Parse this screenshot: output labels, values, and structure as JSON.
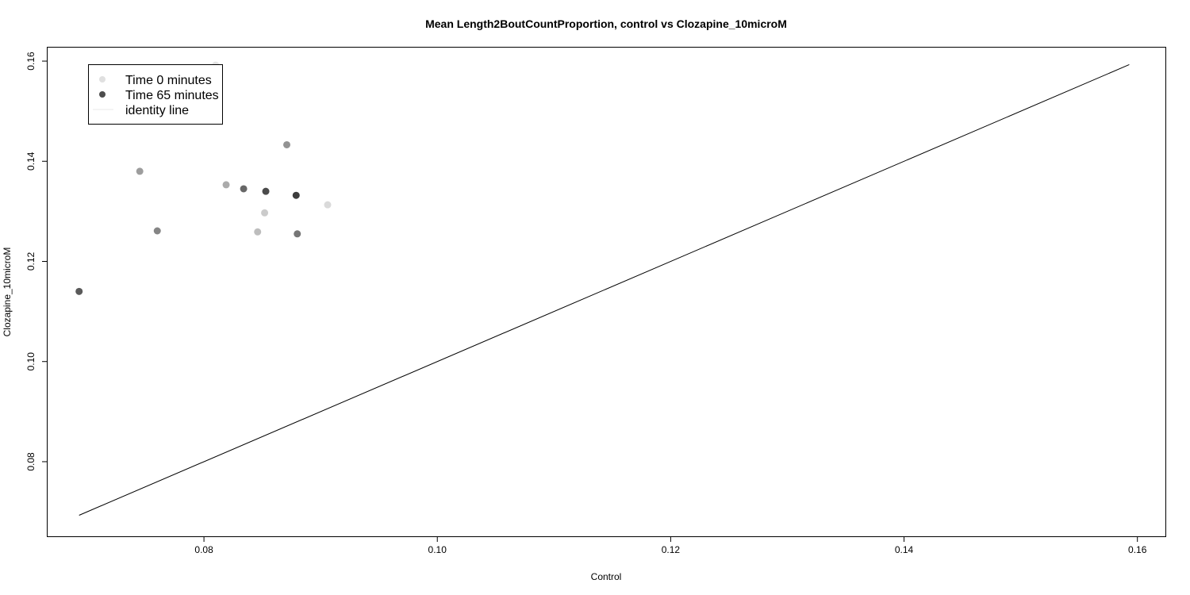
{
  "chart_data": {
    "type": "scatter",
    "title": "Mean Length2BoutCountProportion, control vs Clozapine_10microM",
    "xlabel": "Control",
    "ylabel": "Clozapine_10microM",
    "xlim": [
      0.0666,
      0.1624
    ],
    "ylim": [
      0.0651,
      0.1627
    ],
    "xticks": [
      "0.08",
      "0.10",
      "0.12",
      "0.14",
      "0.16"
    ],
    "xtick_values": [
      0.08,
      0.1,
      0.12,
      0.14,
      0.16
    ],
    "yticks": [
      "0.08",
      "0.10",
      "0.12",
      "0.14",
      "0.16"
    ],
    "ytick_values": [
      0.08,
      0.1,
      0.12,
      0.14,
      0.16
    ],
    "grid": false,
    "legend_position": "top-left",
    "legend": [
      {
        "label": "Time 0 minutes",
        "kind": "point",
        "color": "#e0e0e0"
      },
      {
        "label": "Time 65 minutes",
        "kind": "point",
        "color": "#4d4d4d"
      },
      {
        "label": "identity line",
        "kind": "line",
        "color": "#e8e8e8"
      }
    ],
    "identity_line": {
      "x": [
        0.0693,
        0.1593
      ],
      "y": [
        0.0693,
        0.1593
      ],
      "color": "#000000"
    },
    "points": [
      {
        "x": 0.081,
        "y": 0.1592,
        "color": "#e3e3e3"
      },
      {
        "x": 0.0906,
        "y": 0.1313,
        "color": "#dadada"
      },
      {
        "x": 0.0852,
        "y": 0.1297,
        "color": "#cbcbcb"
      },
      {
        "x": 0.0846,
        "y": 0.1259,
        "color": "#bdbdbd"
      },
      {
        "x": 0.0819,
        "y": 0.1353,
        "color": "#ababab"
      },
      {
        "x": 0.0745,
        "y": 0.138,
        "color": "#9d9d9d"
      },
      {
        "x": 0.0871,
        "y": 0.1433,
        "color": "#939393"
      },
      {
        "x": 0.076,
        "y": 0.1261,
        "color": "#858585"
      },
      {
        "x": 0.088,
        "y": 0.1255,
        "color": "#767676"
      },
      {
        "x": 0.0834,
        "y": 0.1345,
        "color": "#676767"
      },
      {
        "x": 0.0693,
        "y": 0.114,
        "color": "#5a5a5a"
      },
      {
        "x": 0.0853,
        "y": 0.134,
        "color": "#4b4b4b"
      },
      {
        "x": 0.0879,
        "y": 0.1332,
        "color": "#3d3d3d"
      }
    ]
  }
}
